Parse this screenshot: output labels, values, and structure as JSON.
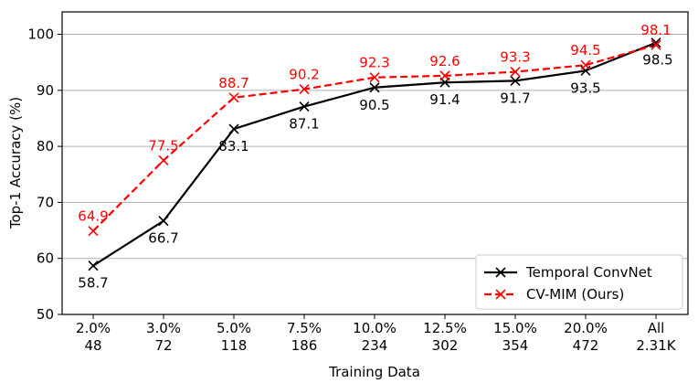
{
  "chart_data": {
    "type": "line",
    "xlabel": "Training Data",
    "ylabel": "Top-1 Accuracy (%)",
    "ylim": [
      50,
      104
    ],
    "yticks": [
      50,
      60,
      70,
      80,
      90,
      100
    ],
    "grid": "horizontal",
    "legend_position": "bottom-right",
    "categories": [
      {
        "pct": "2.0%",
        "count": "48"
      },
      {
        "pct": "3.0%",
        "count": "72"
      },
      {
        "pct": "5.0%",
        "count": "118"
      },
      {
        "pct": "7.5%",
        "count": "186"
      },
      {
        "pct": "10.0%",
        "count": "234"
      },
      {
        "pct": "12.5%",
        "count": "302"
      },
      {
        "pct": "15.0%",
        "count": "354"
      },
      {
        "pct": "20.0%",
        "count": "472"
      },
      {
        "pct": "All",
        "count": "2.31K"
      }
    ],
    "series": [
      {
        "name": "Temporal ConvNet",
        "color": "#000000",
        "dashed": false,
        "label_side": "below",
        "values": [
          58.7,
          66.7,
          83.1,
          87.1,
          90.5,
          91.4,
          91.7,
          93.5,
          98.5
        ],
        "labels": [
          "58.7",
          "66.7",
          "83.1",
          "87.1",
          "90.5",
          "91.4",
          "91.7",
          "93.5",
          "98.5"
        ]
      },
      {
        "name": "CV-MIM (Ours)",
        "color": "#ff0000",
        "dashed": true,
        "label_side": "above",
        "values": [
          64.9,
          77.5,
          88.7,
          90.2,
          92.3,
          92.6,
          93.3,
          94.5,
          98.1
        ],
        "labels": [
          "64.9",
          "77.5",
          "88.7",
          "90.2",
          "92.3",
          "92.6",
          "93.3",
          "94.5",
          "98.1"
        ]
      }
    ]
  }
}
